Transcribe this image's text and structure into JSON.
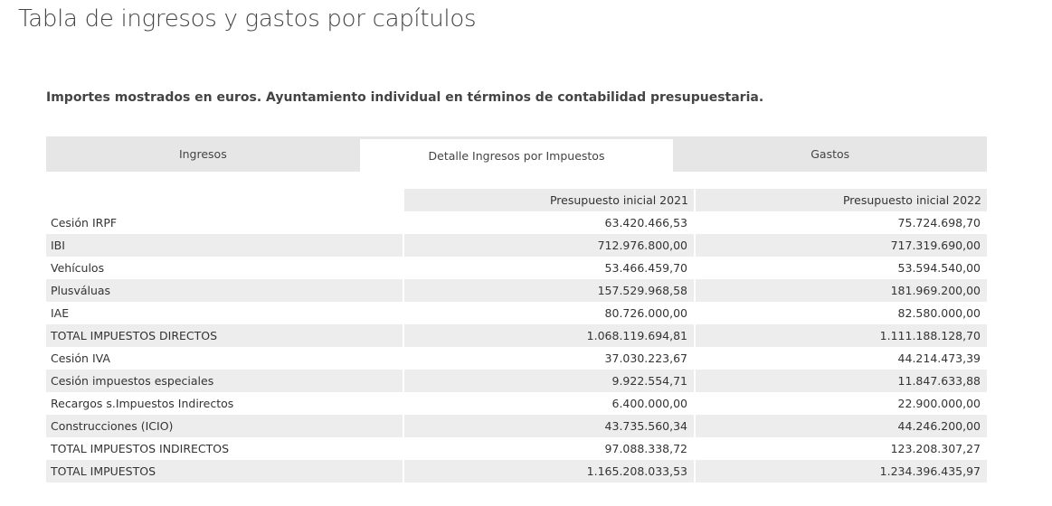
{
  "page": {
    "title": "Tabla de ingresos y gastos por capítulos",
    "subtitle": "Importes mostrados en euros. Ayuntamiento individual en términos de contabilidad presupuestaria."
  },
  "tabs": [
    {
      "label": "Ingresos",
      "active": false
    },
    {
      "label": "Detalle Ingresos por Impuestos",
      "active": true
    },
    {
      "label": "Gastos",
      "active": false
    }
  ],
  "table": {
    "headers": [
      "",
      "Presupuesto inicial 2021",
      "Presupuesto inicial 2022"
    ],
    "rows": [
      {
        "concept": "Cesión IRPF",
        "v2021": "63.420.466,53",
        "v2022": "75.724.698,70"
      },
      {
        "concept": "IBI",
        "v2021": "712.976.800,00",
        "v2022": "717.319.690,00"
      },
      {
        "concept": "Vehículos",
        "v2021": "53.466.459,70",
        "v2022": "53.594.540,00"
      },
      {
        "concept": "Plusváluas",
        "v2021": "157.529.968,58",
        "v2022": "181.969.200,00"
      },
      {
        "concept": "IAE",
        "v2021": "80.726.000,00",
        "v2022": "82.580.000,00"
      },
      {
        "concept": "TOTAL IMPUESTOS DIRECTOS",
        "v2021": "1.068.119.694,81",
        "v2022": "1.111.188.128,70"
      },
      {
        "concept": "Cesión IVA",
        "v2021": "37.030.223,67",
        "v2022": "44.214.473,39"
      },
      {
        "concept": "Cesión impuestos especiales",
        "v2021": "9.922.554,71",
        "v2022": "11.847.633,88"
      },
      {
        "concept": "Recargos s.Impuestos Indirectos",
        "v2021": "6.400.000,00",
        "v2022": "22.900.000,00"
      },
      {
        "concept": "Construcciones (ICIO)",
        "v2021": "43.735.560,34",
        "v2022": "44.246.200,00"
      },
      {
        "concept": "TOTAL IMPUESTOS INDIRECTOS",
        "v2021": "97.088.338,72",
        "v2022": "123.208.307,27"
      },
      {
        "concept": "TOTAL IMPUESTOS",
        "v2021": "1.165.208.033,53",
        "v2022": "1.234.396.435,97"
      }
    ]
  }
}
